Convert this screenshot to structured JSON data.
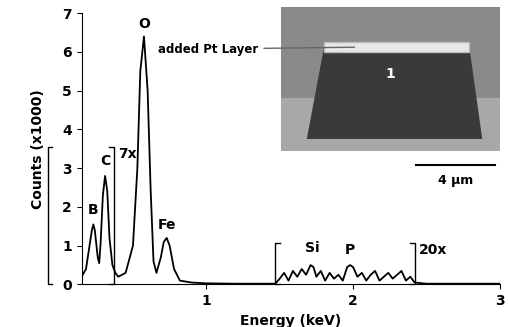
{
  "chart_data": {
    "type": "line",
    "xlabel": "Energy (keV)",
    "ylabel": "Counts (x1000)",
    "color": "#000000",
    "x": [
      0.15,
      0.18,
      0.2,
      0.22,
      0.23,
      0.24,
      0.26,
      0.27,
      0.28,
      0.295,
      0.31,
      0.325,
      0.34,
      0.36,
      0.38,
      0.4,
      0.45,
      0.5,
      0.53,
      0.55,
      0.575,
      0.6,
      0.62,
      0.64,
      0.66,
      0.69,
      0.71,
      0.73,
      0.75,
      0.78,
      0.82,
      0.9,
      1.0,
      1.2,
      1.4,
      1.47,
      1.5,
      1.53,
      1.56,
      1.59,
      1.62,
      1.65,
      1.68,
      1.71,
      1.73,
      1.75,
      1.78,
      1.81,
      1.84,
      1.87,
      1.9,
      1.93,
      1.96,
      1.98,
      2.0,
      2.03,
      2.06,
      2.09,
      2.12,
      2.15,
      2.18,
      2.21,
      2.24,
      2.27,
      2.3,
      2.33,
      2.36,
      2.39,
      2.42,
      2.5,
      2.7,
      3.0
    ],
    "values": [
      0.2,
      0.4,
      0.9,
      1.4,
      1.55,
      1.4,
      0.7,
      0.55,
      1.1,
      2.3,
      2.8,
      2.4,
      1.2,
      0.5,
      0.3,
      0.2,
      0.3,
      1.0,
      3.0,
      5.5,
      6.4,
      5.0,
      2.5,
      0.6,
      0.3,
      0.7,
      1.1,
      1.2,
      1.0,
      0.4,
      0.1,
      0.05,
      0.03,
      0.02,
      0.02,
      0.02,
      0.15,
      0.3,
      0.1,
      0.35,
      0.2,
      0.4,
      0.25,
      0.5,
      0.45,
      0.2,
      0.35,
      0.1,
      0.3,
      0.15,
      0.25,
      0.1,
      0.45,
      0.5,
      0.45,
      0.2,
      0.3,
      0.1,
      0.25,
      0.35,
      0.1,
      0.2,
      0.3,
      0.15,
      0.25,
      0.35,
      0.1,
      0.2,
      0.05,
      0.02,
      0.02,
      0.02
    ],
    "xlim": [
      0.15,
      3.0
    ],
    "xticks": [
      1,
      2,
      3
    ],
    "ylim": [
      0,
      7
    ],
    "yticks": [
      0,
      1,
      2,
      3,
      4,
      5,
      6,
      7
    ],
    "annotations": [
      {
        "text": "B",
        "x": 0.23,
        "y": 1.75
      },
      {
        "text": "C",
        "x": 0.31,
        "y": 3.0
      },
      {
        "text": "O",
        "x": 0.575,
        "y": 6.55
      },
      {
        "text": "Fe",
        "x": 0.73,
        "y": 1.35
      },
      {
        "text": "Si",
        "x": 1.72,
        "y": 0.75
      },
      {
        "text": "P",
        "x": 1.98,
        "y": 0.7
      }
    ],
    "brackets": [
      {
        "text": "7x",
        "x": [
          -0.08,
          0.37
        ],
        "y": [
          0,
          3.55
        ]
      },
      {
        "text": "20x",
        "x": [
          1.47,
          2.42
        ],
        "y": [
          0,
          1.06
        ]
      }
    ],
    "inset_labels": {
      "pointer": "added Pt Layer",
      "marker": "1",
      "scale_bar": "4 μm"
    }
  }
}
